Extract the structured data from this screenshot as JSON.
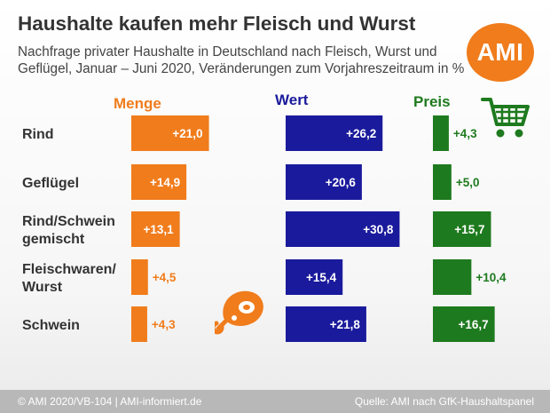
{
  "title": "Haushalte kaufen mehr Fleisch und Wurst",
  "subtitle_lines": [
    "Nachfrage privater Haushalte in Deutschland nach Fleisch, Wurst und",
    "Geflügel, Januar – Juni 2020, Veränderungen zum Vorjahreszeitraum in %"
  ],
  "logo_text": "AMI",
  "icons": {
    "logo": "ami-logo",
    "cart": "shopping-cart-icon",
    "meat": "ham-meat-icon"
  },
  "colors": {
    "menge": "#f07c1c",
    "wert": "#1a1a9c",
    "preis": "#1e7a1e",
    "footer": "#b8b8b8"
  },
  "footer": {
    "left": "© AMI 2020/VB-104 | AMI-informiert.de",
    "right": "Quelle: AMI nach GfK-Haushaltspanel"
  },
  "chart_data": {
    "type": "bar",
    "orientation": "horizontal",
    "categories": [
      [
        "Rind"
      ],
      [
        "Geflügel"
      ],
      [
        "Rind/Schwein",
        "gemischt"
      ],
      [
        "Fleischwaren/",
        "Wurst"
      ],
      [
        "Schwein"
      ]
    ],
    "series": [
      {
        "name": "Menge",
        "values": [
          21.0,
          14.9,
          13.1,
          4.5,
          4.3
        ],
        "labels": [
          "+21,0",
          "+14,9",
          "+13,1",
          "+4,5",
          "+4,3"
        ]
      },
      {
        "name": "Wert",
        "values": [
          26.2,
          20.6,
          30.8,
          15.4,
          21.8
        ],
        "labels": [
          "+26,2",
          "+20,6",
          "+30,8",
          "+15,4",
          "+21,8"
        ]
      },
      {
        "name": "Preis",
        "values": [
          4.3,
          5.0,
          15.7,
          10.4,
          16.7
        ],
        "labels": [
          "+4,3",
          "+5,0",
          "+15,7",
          "+10,4",
          "+16,7"
        ]
      }
    ],
    "unit": "%"
  }
}
